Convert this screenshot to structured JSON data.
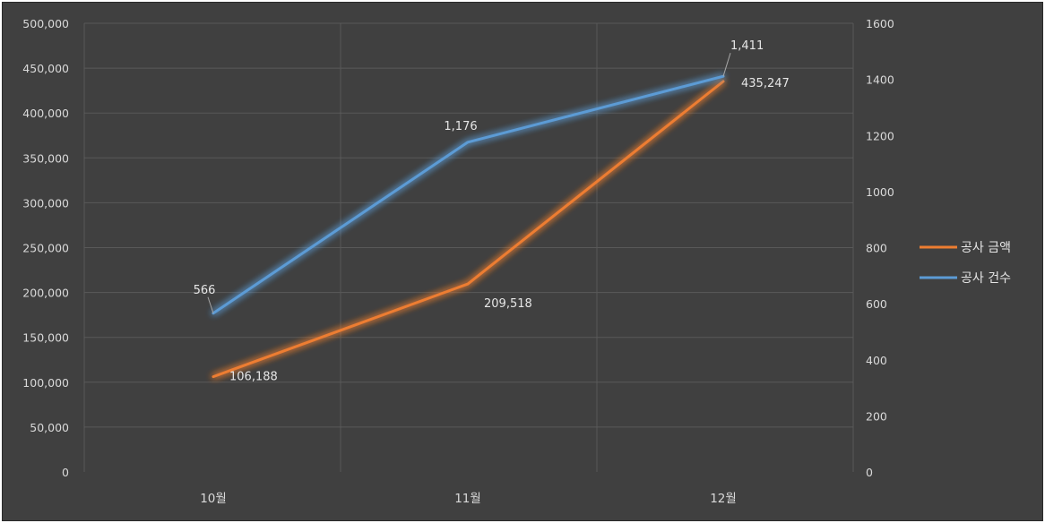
{
  "chart_data": {
    "type": "line",
    "categories": [
      "10월",
      "11월",
      "12월"
    ],
    "series": [
      {
        "name": "공사 금액",
        "axis": "left",
        "color": "#ED7D31",
        "values": [
          106188,
          209518,
          435247
        ],
        "labels": [
          "106,188",
          "209,518",
          "435,247"
        ]
      },
      {
        "name": "공사 건수",
        "axis": "right",
        "color": "#5B9BD5",
        "values": [
          566,
          1176,
          1411
        ],
        "labels": [
          "566",
          "1,176",
          "1,411"
        ]
      }
    ],
    "y_left": {
      "min": 0,
      "max": 500000,
      "ticks": [
        "0",
        "50,000",
        "100,000",
        "150,000",
        "200,000",
        "250,000",
        "300,000",
        "350,000",
        "400,000",
        "450,000",
        "500,000"
      ]
    },
    "y_right": {
      "min": 0,
      "max": 1600,
      "ticks": [
        "0",
        "200",
        "400",
        "600",
        "800",
        "1000",
        "1200",
        "1400",
        "1600"
      ]
    },
    "grid": true,
    "legend_position": "right",
    "background": "#404040"
  }
}
